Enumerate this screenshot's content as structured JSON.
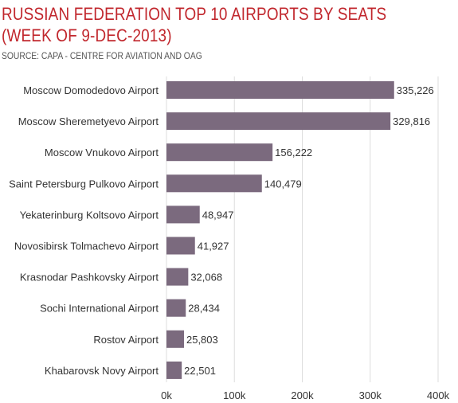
{
  "title_line1": "RUSSIAN FEDERATION TOP 10 AIRPORTS BY SEATS",
  "title_line2": "(WEEK OF 9-DEC-2013)",
  "subtitle": "SOURCE: CAPA - CENTRE FOR AVIATION AND OAG",
  "colors": {
    "bar": "#7b6a7e",
    "title": "#c1272d",
    "gridline": "#dddddd"
  },
  "chart_data": {
    "type": "bar",
    "orientation": "horizontal",
    "categories": [
      "Moscow Domodedovo Airport",
      "Moscow Sheremetyevo Airport",
      "Moscow Vnukovo Airport",
      "Saint Petersburg Pulkovo Airport",
      "Yekaterinburg Koltsovo Airport",
      "Novosibirsk Tolmachevo Airport",
      "Krasnodar Pashkovsky Airport",
      "Sochi International Airport",
      "Rostov Airport",
      "Khabarovsk Novy Airport"
    ],
    "values": [
      335226,
      329816,
      156222,
      140479,
      48947,
      41927,
      32068,
      28434,
      25803,
      22501
    ],
    "value_labels": [
      "335,226",
      "329,816",
      "156,222",
      "140,479",
      "48,947",
      "41,927",
      "32,068",
      "28,434",
      "25,803",
      "22,501"
    ],
    "xlim": [
      0,
      400000
    ],
    "xticks": [
      0,
      100000,
      200000,
      300000,
      400000
    ],
    "xtick_labels": [
      "0k",
      "100k",
      "200k",
      "300k",
      "400k"
    ],
    "grid": true
  }
}
